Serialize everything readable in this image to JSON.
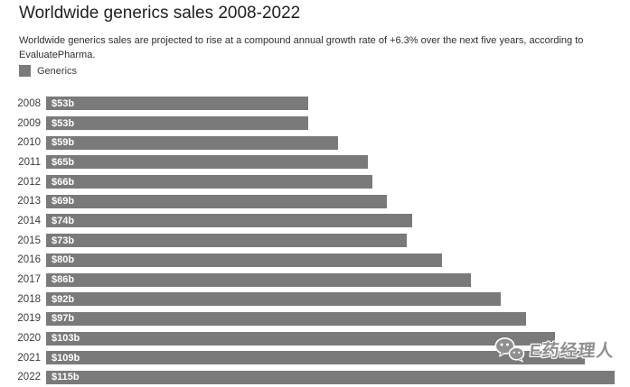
{
  "page": {
    "title": "Worldwide generics sales 2008-2022",
    "subtitle_line1": "Worldwide generics sales are projected to rise at a compound annual growth rate of +6.3% over the next five years, according to",
    "subtitle_line2": "EvaluatePharma."
  },
  "legend": {
    "label": "Generics",
    "swatch_color": "#7a7a7a"
  },
  "chart_data": {
    "type": "bar",
    "orientation": "horizontal",
    "title": "Worldwide generics sales 2008-2022",
    "series_name": "Generics",
    "categories": [
      "2008",
      "2009",
      "2010",
      "2011",
      "2012",
      "2013",
      "2014",
      "2015",
      "2016",
      "2017",
      "2018",
      "2019",
      "2020",
      "2021",
      "2022"
    ],
    "values": [
      53,
      53,
      59,
      65,
      66,
      69,
      74,
      73,
      80,
      86,
      92,
      97,
      103,
      109,
      115
    ],
    "value_labels": [
      "$53b",
      "$53b",
      "$59b",
      "$65b",
      "$66b",
      "$69b",
      "$74b",
      "$73b",
      "$80b",
      "$86b",
      "$92b",
      "$97b",
      "$103b",
      "$109b",
      "$115b"
    ],
    "xlim": [
      0,
      115
    ],
    "bar_color": "#7a7a7a",
    "grid": false,
    "legend_position": "top-left"
  },
  "watermark": {
    "text": "E药经理人",
    "icon": "wechat-icon"
  }
}
